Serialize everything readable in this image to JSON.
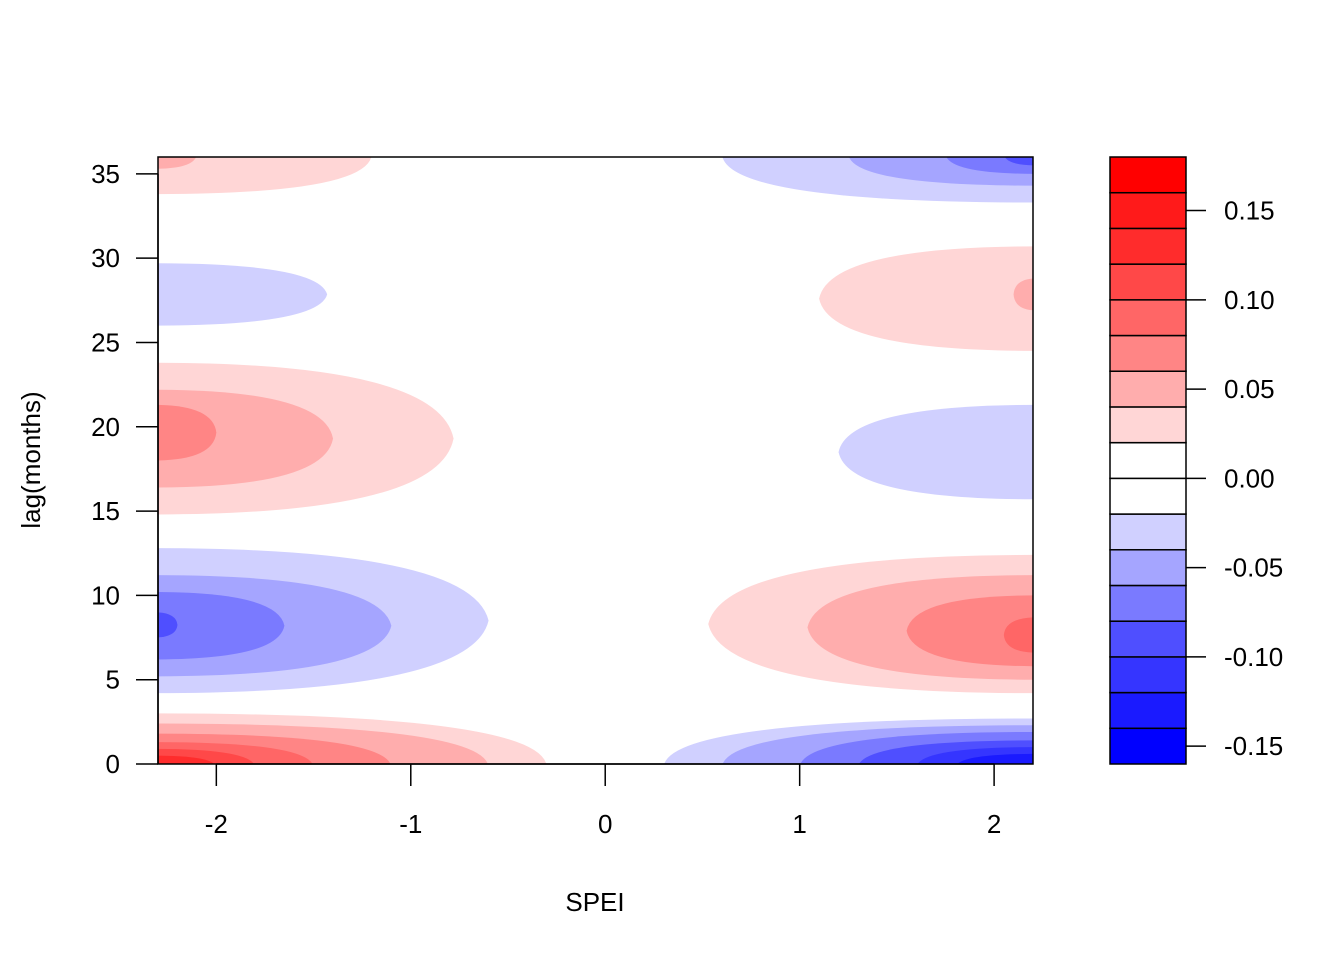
{
  "chart_data": {
    "type": "heatmap",
    "subtype": "filled-contour",
    "title": "",
    "xlabel": "SPEI",
    "ylabel": "lag(months)",
    "xlim": [
      -2.3,
      2.2
    ],
    "ylim": [
      0,
      36
    ],
    "x_ticks": [
      -2,
      -1,
      0,
      1,
      2
    ],
    "y_ticks": [
      0,
      5,
      10,
      15,
      20,
      25,
      30,
      35
    ],
    "legend_position": "right",
    "colorbar": {
      "range": [
        -0.16,
        0.18
      ],
      "breaks": [
        -0.16,
        -0.14,
        -0.12,
        -0.1,
        -0.08,
        -0.06,
        -0.04,
        -0.02,
        0.0,
        0.02,
        0.04,
        0.06,
        0.08,
        0.1,
        0.12,
        0.14,
        0.16,
        0.18
      ],
      "colors": [
        "#0000FF",
        "#1A1AFF",
        "#3535FF",
        "#4F4FFF",
        "#7A7AFF",
        "#A5A5FF",
        "#D0D0FF",
        "#FFFFFF",
        "#FFFFFF",
        "#FFD6D6",
        "#FFADAD",
        "#FF8585",
        "#FF6666",
        "#FF4848",
        "#FF2C2C",
        "#FF1A1A",
        "#FF0000"
      ],
      "tick_values": [
        -0.15,
        -0.1,
        -0.05,
        0.0,
        0.05,
        0.1,
        0.15
      ],
      "tick_labels": [
        "-0.15",
        "-0.10",
        "-0.05",
        "0.00",
        "0.05",
        "0.10",
        "0.15"
      ]
    },
    "contour_regions": [
      {
        "level": 0.03,
        "x_range": [
          -2.3,
          -0.3
        ],
        "y_range": [
          0,
          3
        ]
      },
      {
        "level": 0.05,
        "x_range": [
          -2.3,
          -0.6
        ],
        "y_range": [
          0,
          2.4
        ]
      },
      {
        "level": 0.07,
        "x_range": [
          -2.3,
          -1.1
        ],
        "y_range": [
          0,
          1.8
        ]
      },
      {
        "level": 0.09,
        "x_range": [
          -2.3,
          -1.5
        ],
        "y_range": [
          0,
          1.3
        ]
      },
      {
        "level": 0.11,
        "x_range": [
          -2.3,
          -1.8
        ],
        "y_range": [
          0,
          0.9
        ]
      },
      {
        "level": 0.13,
        "x_range": [
          -2.3,
          -2.0
        ],
        "y_range": [
          0,
          0.5
        ]
      },
      {
        "level": -0.03,
        "x_range": [
          0.3,
          2.2
        ],
        "y_range": [
          0,
          2.7
        ]
      },
      {
        "level": -0.05,
        "x_range": [
          0.6,
          2.2
        ],
        "y_range": [
          0,
          2.3
        ]
      },
      {
        "level": -0.07,
        "x_range": [
          1.0,
          2.2
        ],
        "y_range": [
          0,
          1.9
        ]
      },
      {
        "level": -0.09,
        "x_range": [
          1.3,
          2.2
        ],
        "y_range": [
          0,
          1.4
        ]
      },
      {
        "level": -0.11,
        "x_range": [
          1.6,
          2.2
        ],
        "y_range": [
          0,
          1.0
        ]
      },
      {
        "level": -0.13,
        "x_range": [
          1.8,
          2.2
        ],
        "y_range": [
          0,
          0.6
        ]
      },
      {
        "level": -0.03,
        "x_range": [
          -2.3,
          -0.6
        ],
        "y_range": [
          4.2,
          12.8
        ]
      },
      {
        "level": -0.05,
        "x_range": [
          -2.3,
          -1.1
        ],
        "y_range": [
          5.2,
          11.2
        ]
      },
      {
        "level": -0.07,
        "x_range": [
          -2.3,
          -1.65
        ],
        "y_range": [
          6.2,
          10.2
        ]
      },
      {
        "level": -0.09,
        "x_range": [
          -2.3,
          -2.2
        ],
        "y_range": [
          7.5,
          9.0
        ]
      },
      {
        "level": 0.03,
        "x_range": [
          0.53,
          2.2
        ],
        "y_range": [
          4.2,
          12.4
        ]
      },
      {
        "level": 0.05,
        "x_range": [
          1.04,
          2.2
        ],
        "y_range": [
          5.0,
          11.2
        ]
      },
      {
        "level": 0.07,
        "x_range": [
          1.55,
          2.2
        ],
        "y_range": [
          5.8,
          10.0
        ]
      },
      {
        "level": 0.09,
        "x_range": [
          2.05,
          2.2
        ],
        "y_range": [
          6.6,
          8.7
        ]
      },
      {
        "level": 0.03,
        "x_range": [
          -2.3,
          -0.78
        ],
        "y_range": [
          14.8,
          23.8
        ]
      },
      {
        "level": 0.05,
        "x_range": [
          -2.3,
          -1.4
        ],
        "y_range": [
          16.4,
          22.2
        ]
      },
      {
        "level": 0.07,
        "x_range": [
          -2.3,
          -2.0
        ],
        "y_range": [
          18.0,
          21.3
        ]
      },
      {
        "level": -0.03,
        "x_range": [
          1.2,
          2.2
        ],
        "y_range": [
          15.7,
          21.3
        ]
      },
      {
        "level": -0.03,
        "x_range": [
          -2.3,
          -1.43
        ],
        "y_range": [
          26.0,
          29.7
        ]
      },
      {
        "level": 0.03,
        "x_range": [
          1.1,
          2.2
        ],
        "y_range": [
          24.5,
          30.7
        ]
      },
      {
        "level": 0.05,
        "x_range": [
          2.1,
          2.2
        ],
        "y_range": [
          26.9,
          28.8
        ]
      },
      {
        "level": 0.03,
        "x_range": [
          -2.3,
          -1.2
        ],
        "y_range": [
          33.8,
          36
        ]
      },
      {
        "level": 0.05,
        "x_range": [
          -2.3,
          -2.1
        ],
        "y_range": [
          35.3,
          36
        ]
      },
      {
        "level": -0.03,
        "x_range": [
          0.6,
          2.2
        ],
        "y_range": [
          33.3,
          36
        ]
      },
      {
        "level": -0.05,
        "x_range": [
          1.25,
          2.2
        ],
        "y_range": [
          34.3,
          36
        ]
      },
      {
        "level": -0.07,
        "x_range": [
          1.75,
          2.2
        ],
        "y_range": [
          35.0,
          36
        ]
      },
      {
        "level": -0.09,
        "x_range": [
          2.05,
          2.2
        ],
        "y_range": [
          35.5,
          36
        ]
      }
    ]
  }
}
